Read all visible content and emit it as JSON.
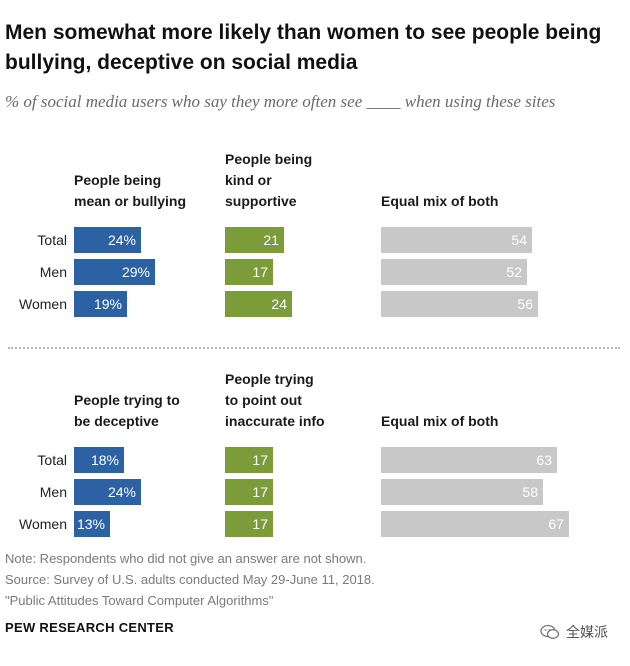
{
  "title": "Men somewhat more likely than women to see people being bullying, deceptive on social media",
  "subtitle": "% of social media users who say they more often see ____ when using these sites",
  "colors": {
    "blue": "#2c62a4",
    "green": "#7c9c3a",
    "gray": "#c8c8c8"
  },
  "chart_data": [
    {
      "type": "bar",
      "categories": [
        "Total",
        "Men",
        "Women"
      ],
      "series": [
        {
          "name": "People being mean or bullying",
          "values": [
            24,
            29,
            19
          ],
          "labels": [
            "24%",
            "29%",
            "19%"
          ]
        },
        {
          "name": "People being kind or supportive",
          "values": [
            21,
            17,
            24
          ],
          "labels": [
            "21",
            "17",
            "24"
          ]
        },
        {
          "name": "Equal mix of both",
          "values": [
            54,
            52,
            56
          ],
          "labels": [
            "54",
            "52",
            "56"
          ]
        }
      ]
    },
    {
      "type": "bar",
      "categories": [
        "Total",
        "Men",
        "Women"
      ],
      "series": [
        {
          "name": "People trying to be deceptive",
          "values": [
            18,
            24,
            13
          ],
          "labels": [
            "18%",
            "24%",
            "13%"
          ]
        },
        {
          "name": "People trying to point out inaccurate info",
          "values": [
            17,
            17,
            17
          ],
          "labels": [
            "17",
            "17",
            "17"
          ]
        },
        {
          "name": "Equal mix of both",
          "values": [
            63,
            58,
            67
          ],
          "labels": [
            "63",
            "58",
            "67"
          ]
        }
      ]
    }
  ],
  "notes": [
    "Note: Respondents who did not give an answer are not shown.",
    "Source: Survey of U.S. adults conducted May 29-June 11, 2018.",
    "\"Public Attitudes Toward Computer Algorithms\""
  ],
  "org": "PEW RESEARCH CENTER",
  "watermark": {
    "text": "全媒派",
    "icon": "wechat-icon"
  }
}
